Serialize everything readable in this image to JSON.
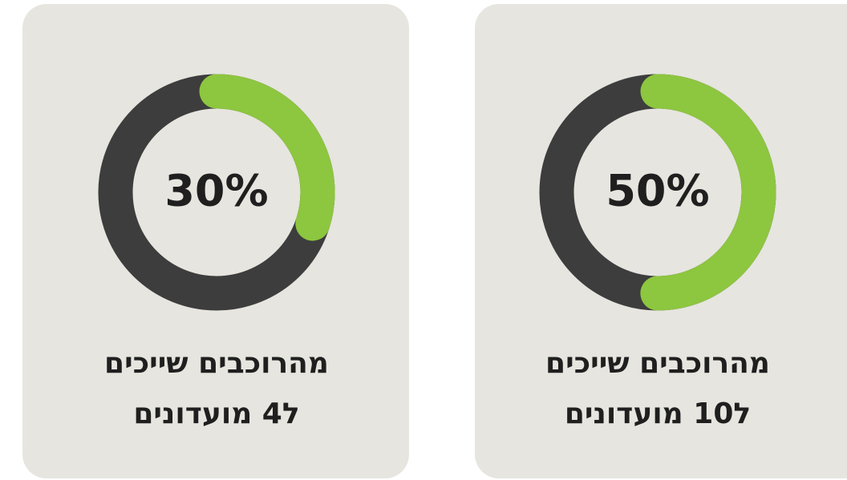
{
  "chart_data": [
    {
      "type": "donut",
      "values": [
        30
      ],
      "value_labels": [
        "30%"
      ],
      "color": "#8dc63f",
      "track_color": "#3d3d3d",
      "annotations": [
        "מהרוכבים שייכים",
        "ל4 מועדונים"
      ]
    },
    {
      "type": "donut",
      "values": [
        50
      ],
      "value_labels": [
        "50%"
      ],
      "color": "#8dc63f",
      "track_color": "#3d3d3d",
      "annotations": [
        "מהרוכבים שייכים",
        "ל10 מועדונים"
      ]
    }
  ]
}
